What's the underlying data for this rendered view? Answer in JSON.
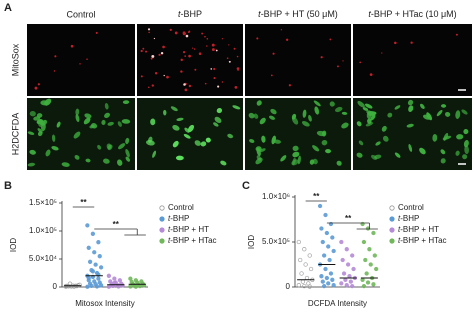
{
  "panel_a": {
    "label": "A",
    "columns": [
      "Control",
      "t-BHP",
      "t-BHP + HT (50 μM)",
      "t-BHP + HTac (10 μM)"
    ],
    "rows": [
      "MitoSox",
      "H2DCFDA"
    ]
  },
  "chart_data": [
    {
      "type": "dot",
      "label": "B",
      "ylabel": "IOD",
      "xlabel": "Mitosox Intensity",
      "ylim": [
        0,
        150000
      ],
      "yticks": [
        0,
        {
          "value": 50000,
          "label": "5.0×10⁴"
        },
        {
          "value": 100000,
          "label": "1.0×10⁵"
        },
        {
          "value": 150000,
          "label": "1.5×10⁵"
        }
      ],
      "series": [
        {
          "name": "Control",
          "color": "#999999",
          "hollow": true,
          "values": [
            500,
            1000,
            1500,
            2000,
            2500,
            3000,
            1200,
            800,
            4000,
            6000,
            2200,
            1800
          ],
          "mean": 2300
        },
        {
          "name": "t-BHP",
          "color": "#5b9bd5",
          "values": [
            110000,
            95000,
            80000,
            70000,
            62000,
            55000,
            45000,
            40000,
            35000,
            30000,
            25000,
            20000,
            18000,
            15000,
            12000,
            10000,
            8000,
            6000,
            5000,
            3000,
            2000,
            1000,
            500,
            28000,
            22000,
            16000
          ],
          "mean": 20000
        },
        {
          "name": "t-BHP + HT",
          "color": "#b58ad8",
          "values": [
            20000,
            15000,
            12000,
            10000,
            8000,
            6000,
            5000,
            4000,
            3000,
            2000,
            1000,
            500,
            7000
          ],
          "mean": 4000
        },
        {
          "name": "t-BHP + HTac",
          "color": "#70b85a",
          "values": [
            15000,
            12000,
            10000,
            9000,
            8000,
            6000,
            5000,
            4000,
            3000,
            2000,
            1500,
            1000,
            500
          ],
          "mean": 5000
        }
      ],
      "annotations": [
        {
          "text": "**",
          "between": [
            "Control",
            "t-BHP"
          ]
        },
        {
          "text": "**",
          "between": [
            "t-BHP",
            "t-BHP + HTac"
          ]
        }
      ]
    },
    {
      "type": "dot",
      "label": "C",
      "ylabel": "IOD",
      "xlabel": "DCFDA Intensity",
      "ylim": [
        0,
        1000000
      ],
      "yticks": [
        0,
        {
          "value": 500000,
          "label": "5.0×10⁵"
        },
        {
          "value": 1000000,
          "label": "1.0×10⁶"
        }
      ],
      "series": [
        {
          "name": "Control",
          "color": "#999999",
          "hollow": true,
          "values": [
            500000,
            420000,
            350000,
            300000,
            250000,
            200000,
            150000,
            100000,
            80000,
            60000,
            40000,
            20000,
            10000,
            5000
          ],
          "mean": 80000
        },
        {
          "name": "t-BHP",
          "color": "#5b9bd5",
          "values": [
            900000,
            800000,
            700000,
            650000,
            600000,
            550000,
            500000,
            450000,
            400000,
            350000,
            300000,
            250000,
            200000,
            150000,
            120000,
            100000,
            80000,
            60000,
            40000,
            20000,
            10000
          ],
          "mean": 250000
        },
        {
          "name": "t-BHP + HT",
          "color": "#b58ad8",
          "values": [
            500000,
            420000,
            350000,
            300000,
            250000,
            200000,
            150000,
            120000,
            100000,
            80000,
            60000,
            40000,
            20000,
            10000
          ],
          "mean": 100000
        },
        {
          "name": "t-BHP + HTac",
          "color": "#70b85a",
          "values": [
            700000,
            650000,
            600000,
            500000,
            420000,
            350000,
            300000,
            250000,
            200000,
            150000,
            100000,
            80000,
            50000,
            30000,
            10000
          ],
          "mean": 100000
        }
      ],
      "annotations": [
        {
          "text": "**",
          "between": [
            "Control",
            "t-BHP"
          ]
        },
        {
          "text": "**",
          "between": [
            "t-BHP",
            "t-BHP + HTac"
          ]
        }
      ]
    }
  ]
}
